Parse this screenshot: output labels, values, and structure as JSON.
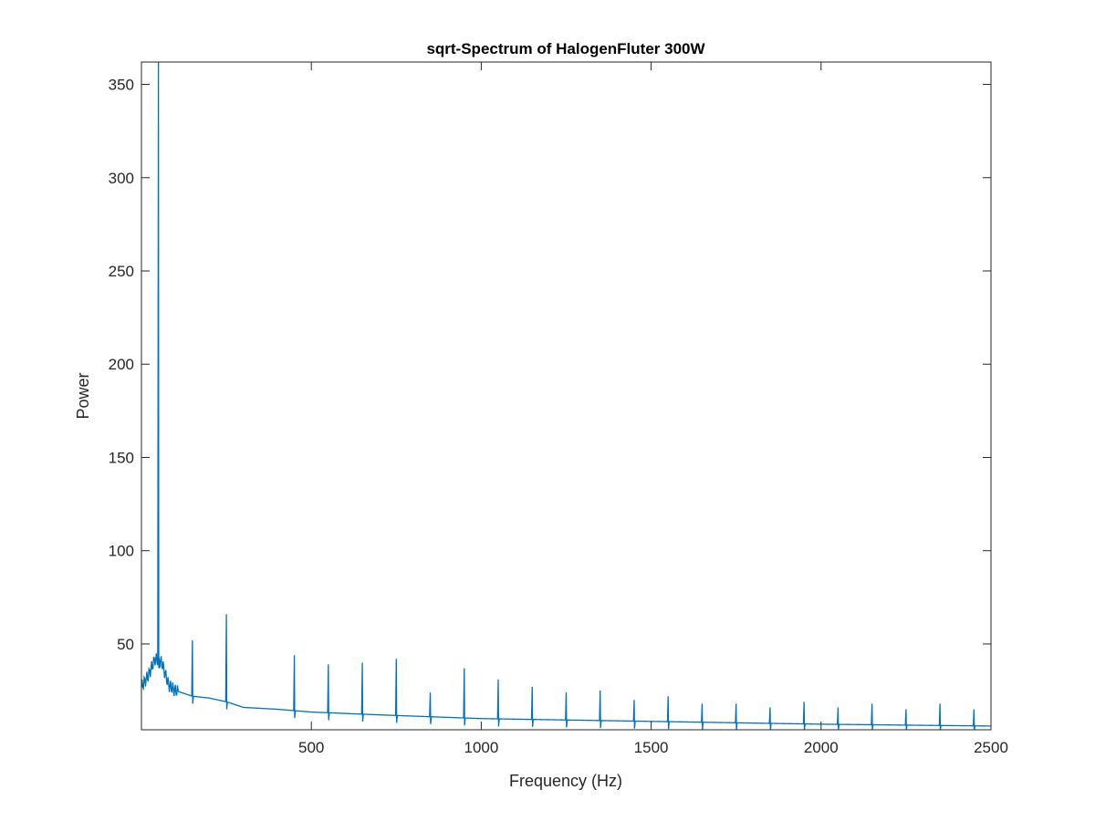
{
  "chart_data": {
    "type": "line",
    "title": "sqrt-Spectrum of HalogenFluter 300W",
    "xlabel": "Frequency (Hz)",
    "ylabel": "Power",
    "xlim": [
      0,
      2500
    ],
    "ylim": [
      4,
      362
    ],
    "xticks": [
      500,
      1000,
      1500,
      2000,
      2500
    ],
    "yticks": [
      50,
      100,
      150,
      200,
      250,
      300,
      350
    ],
    "grid": false,
    "line_color": "#0072BD",
    "axis_color": "#262626",
    "series": [
      {
        "peaks": [
          {
            "x": 50,
            "y": 362
          },
          {
            "x": 150,
            "y": 52
          },
          {
            "x": 250,
            "y": 66
          },
          {
            "x": 450,
            "y": 44
          },
          {
            "x": 550,
            "y": 39
          },
          {
            "x": 650,
            "y": 40
          },
          {
            "x": 750,
            "y": 42
          },
          {
            "x": 850,
            "y": 24
          },
          {
            "x": 950,
            "y": 37
          },
          {
            "x": 1050,
            "y": 31
          },
          {
            "x": 1150,
            "y": 27
          },
          {
            "x": 1250,
            "y": 24
          },
          {
            "x": 1350,
            "y": 25
          },
          {
            "x": 1450,
            "y": 20
          },
          {
            "x": 1550,
            "y": 22
          },
          {
            "x": 1650,
            "y": 18
          },
          {
            "x": 1750,
            "y": 18
          },
          {
            "x": 1850,
            "y": 16
          },
          {
            "x": 1950,
            "y": 19
          },
          {
            "x": 2050,
            "y": 16
          },
          {
            "x": 2150,
            "y": 18
          },
          {
            "x": 2250,
            "y": 15
          },
          {
            "x": 2350,
            "y": 18
          },
          {
            "x": 2450,
            "y": 15
          }
        ],
        "baseline": [
          {
            "x": 0,
            "y": 27
          },
          {
            "x": 20,
            "y": 33
          },
          {
            "x": 40,
            "y": 42
          },
          {
            "x": 60,
            "y": 40
          },
          {
            "x": 80,
            "y": 28
          },
          {
            "x": 100,
            "y": 25
          },
          {
            "x": 150,
            "y": 22
          },
          {
            "x": 200,
            "y": 21
          },
          {
            "x": 250,
            "y": 19
          },
          {
            "x": 300,
            "y": 16
          },
          {
            "x": 400,
            "y": 15
          },
          {
            "x": 500,
            "y": 13.5
          },
          {
            "x": 700,
            "y": 12
          },
          {
            "x": 1000,
            "y": 10
          },
          {
            "x": 1500,
            "y": 8.5
          },
          {
            "x": 2000,
            "y": 7
          },
          {
            "x": 2500,
            "y": 6
          }
        ]
      }
    ]
  }
}
